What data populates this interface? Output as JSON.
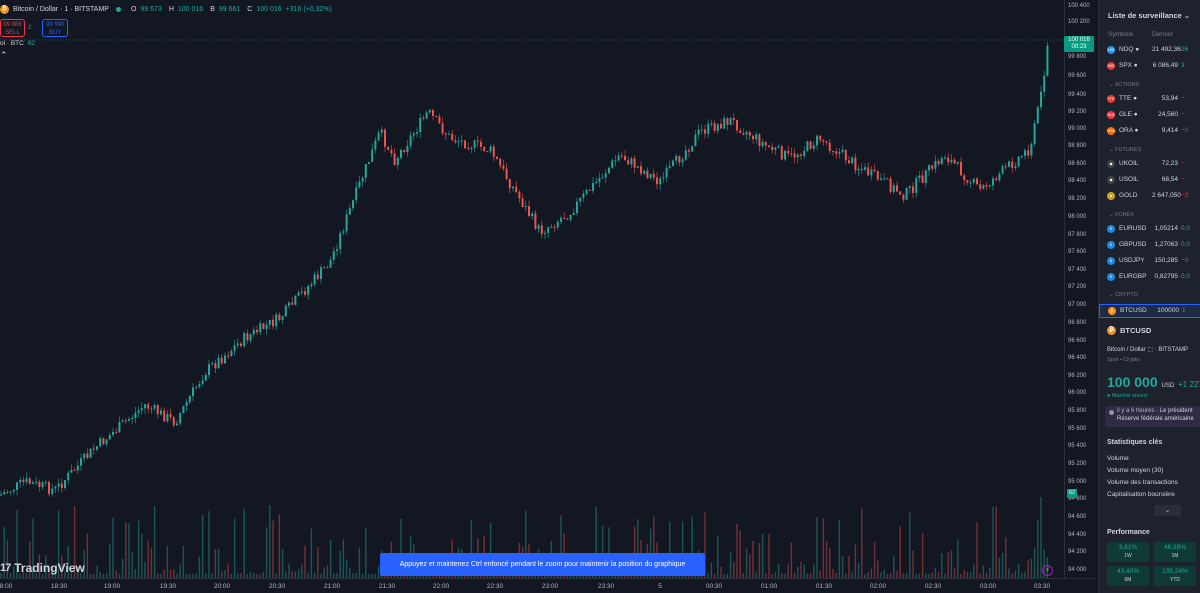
{
  "legend": {
    "coin": "₿",
    "title": "Bitcoin / Dollar · 1 · BITSTAMP",
    "o_key": "O",
    "o_val": "99 673",
    "h_key": "H",
    "h_val": "100 016",
    "b_key": "B",
    "b_val": "99 661",
    "c_key": "C",
    "c_val": "100 016",
    "change": "+316 (+0,32%)"
  },
  "trade": {
    "sell_price": "99 988",
    "sell_label": "SELL",
    "spread": "2",
    "buy_price": "99 990",
    "buy_label": "BUY"
  },
  "indicator": {
    "label": "ol · BTC",
    "value": "62"
  },
  "price_axis": {
    "labels": [
      "100 400",
      "100 200",
      "99 800",
      "99 600",
      "99 400",
      "99 200",
      "99 000",
      "98 800",
      "98 600",
      "98 400",
      "98 200",
      "98 000",
      "97 800",
      "97 600",
      "97 400",
      "97 200",
      "97 000",
      "96 800",
      "96 600",
      "96 400",
      "96 200",
      "96 000",
      "95 800",
      "95 600",
      "95 400",
      "95 200",
      "95 000",
      "94 800",
      "94 600",
      "94 400",
      "94 200",
      "94 000"
    ],
    "last_price": "100 016",
    "countdown": "00:23",
    "volume_badge": "62"
  },
  "time_axis": [
    "8:00",
    "18:30",
    "19:00",
    "19:30",
    "20:00",
    "20:30",
    "21:00",
    "21:30",
    "22:00",
    "22:30",
    "23:00",
    "23:30",
    "5",
    "00:30",
    "01:00",
    "01:30",
    "02:00",
    "02:30",
    "03:00",
    "03:30"
  ],
  "branding": {
    "logo_mark": "17",
    "name": "TradingView"
  },
  "toast": "Appuyez et maintenez Ctrl enfoncé pendant le zoom pour maintenir la position du graphique",
  "lightning": "⚡",
  "watchlist": {
    "title": "Liste de surveillance",
    "chevron": "⌄",
    "col_symbol": "Symbole",
    "col_last": "Dernier",
    "rows": [
      {
        "icon": "100",
        "color": "#2196f3",
        "symbol": "NDQ ●",
        "last": "21 492,36",
        "chg": "26",
        "dir": "pos"
      },
      {
        "icon": "500",
        "color": "#e53935",
        "symbol": "SPX ●",
        "last": "6 086,49",
        "chg": "3",
        "dir": "pos"
      },
      {
        "icon": "TTE",
        "color": "#e53935",
        "symbol": "TTE ●",
        "last": "53,94",
        "chg": "−",
        "dir": "neg"
      },
      {
        "icon": "GLE",
        "color": "#f23645",
        "symbol": "GLE ●",
        "last": "24,560",
        "chg": "−",
        "dir": "neg"
      },
      {
        "icon": "ORA",
        "color": "#ff6d00",
        "symbol": "ORA ●",
        "last": "9,414",
        "chg": "−0",
        "dir": "neg"
      },
      {
        "icon": "◆",
        "color": "#424242",
        "symbol": "UKOIL",
        "last": "72,23",
        "chg": "−",
        "dir": "neg"
      },
      {
        "icon": "◆",
        "color": "#424242",
        "symbol": "USOIL",
        "last": "68,54",
        "chg": "−",
        "dir": "neg"
      },
      {
        "icon": "●",
        "color": "#c9a227",
        "symbol": "GOLD",
        "last": "2 647,050",
        "chg": "−2",
        "dir": "neg"
      },
      {
        "icon": "€",
        "color": "#1e88e5",
        "symbol": "EURUSD",
        "last": "1,05214",
        "chg": "0,0",
        "dir": "pos"
      },
      {
        "icon": "£",
        "color": "#1e88e5",
        "symbol": "GBPUSD",
        "last": "1,27063",
        "chg": "0,0",
        "dir": "pos"
      },
      {
        "icon": "$",
        "color": "#1e88e5",
        "symbol": "USDJPY",
        "last": "150,285",
        "chg": "−0",
        "dir": "neg"
      },
      {
        "icon": "€",
        "color": "#1e88e5",
        "symbol": "EURGBP",
        "last": "0,82795",
        "chg": "0,0",
        "dir": "pos"
      },
      {
        "icon": "₿",
        "color": "#f7931a",
        "symbol": "BTCUSD",
        "last": "100000",
        "chg": "1",
        "dir": "pos"
      }
    ],
    "sections": [
      "ACTIONS",
      "FUTURES",
      "FOREX",
      "CRYPTO"
    ]
  },
  "detail": {
    "symbol": "BTCUSD",
    "description": "Bitcoin / Dollar ⬚ · BITSTAMP",
    "type": "Spot • Crypto",
    "price": "100 000",
    "currency": "USD",
    "change": "+1 227",
    "market_status": "● Marché ouvert",
    "news_time": "il y a 6 heures",
    "news_text1": "· Le président",
    "news_text2": "Réserve fédérale américaine",
    "stats_title": "Statistiques clés",
    "stats": [
      "Volume",
      "Volume moyen (30)",
      "Volume des transactions",
      "Capitalisation boursière"
    ],
    "expand": "⌄",
    "perf_title": "Performance",
    "perf": [
      {
        "value": "3,61%",
        "label": "1W"
      },
      {
        "value": "46,38%",
        "label": "1M"
      },
      {
        "value": "43,40%",
        "label": "6M"
      },
      {
        "value": "135,24%",
        "label": "YTD"
      }
    ]
  }
}
